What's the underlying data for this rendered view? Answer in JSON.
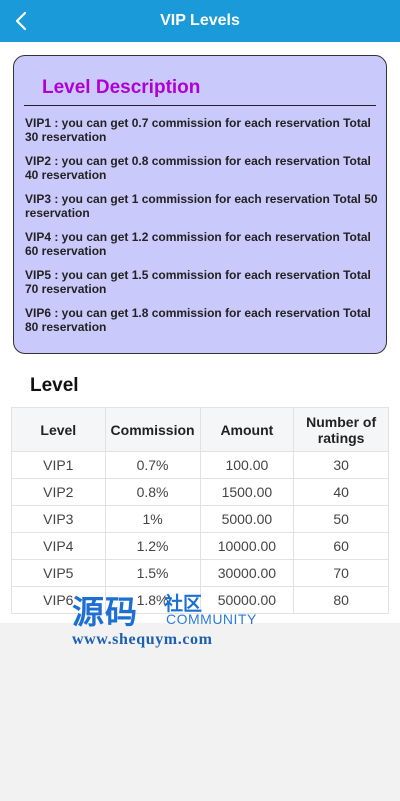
{
  "header": {
    "title": "VIP Levels",
    "back_icon": "chevron-left-icon",
    "color": "#1a9ad9"
  },
  "description": {
    "title": "Level Description",
    "title_color": "#b000d6",
    "card_color": "#c9c9fb",
    "items": [
      "VIP1 : you can get 0.7 commission for each reservation Total 30 reservation",
      "VIP2 : you can get 0.8 commission for each reservation Total 40 reservation",
      "VIP3 : you can get 1 commission for each reservation Total 50 reservation",
      "VIP4 : you can get 1.2 commission for each reservation Total 60 reservation",
      "VIP5 : you can get 1.5 commission for each reservation Total 70 reservation",
      "VIP6 : you can get 1.8 commission for each reservation Total 80 reservation"
    ]
  },
  "levels": {
    "heading": "Level",
    "columns": [
      "Level",
      "Commission",
      "Amount",
      "Number of ratings"
    ],
    "rows": [
      [
        "VIP1",
        "0.7%",
        "100.00",
        "30"
      ],
      [
        "VIP2",
        "0.8%",
        "1500.00",
        "40"
      ],
      [
        "VIP3",
        "1%",
        "5000.00",
        "50"
      ],
      [
        "VIP4",
        "1.2%",
        "10000.00",
        "60"
      ],
      [
        "VIP5",
        "1.5%",
        "30000.00",
        "70"
      ],
      [
        "VIP6",
        "1.8%",
        "50000.00",
        "80"
      ]
    ]
  },
  "watermark": {
    "chinese": "源码",
    "chinese2": "社区",
    "english": "COMMUNITY",
    "url": "www.shequym.com"
  }
}
